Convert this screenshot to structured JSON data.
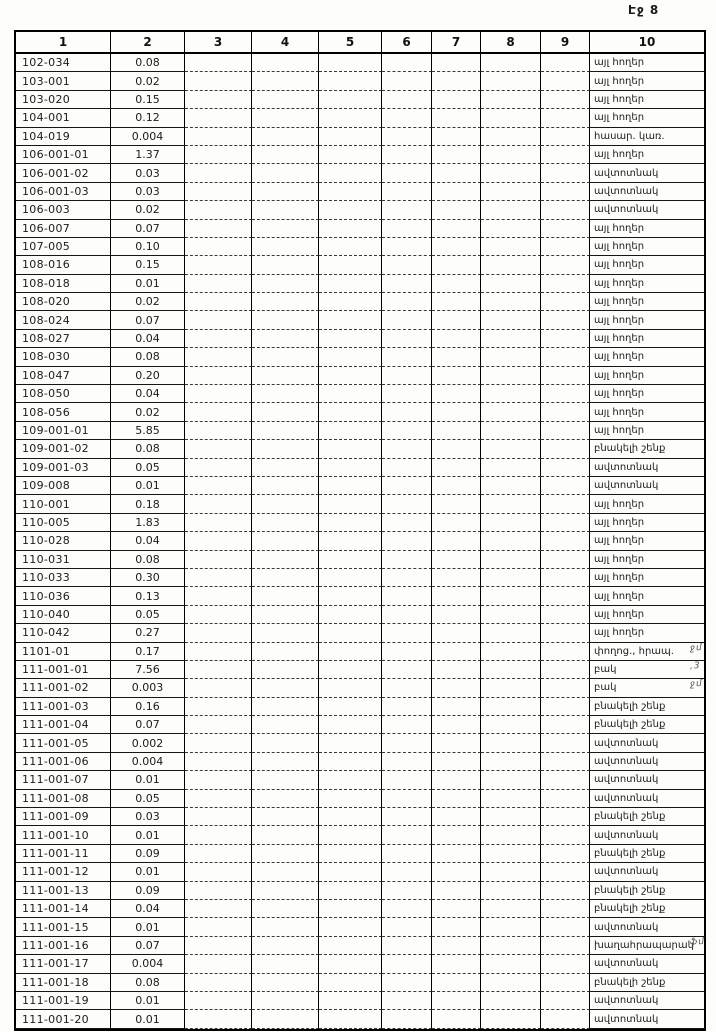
{
  "page": {
    "label": "Էջ 8"
  },
  "table": {
    "headers": [
      "1",
      "2",
      "3",
      "4",
      "5",
      "6",
      "7",
      "8",
      "9",
      "10"
    ],
    "rows": [
      {
        "id": "102-034",
        "value": "0.08",
        "category": "այլ հողեր"
      },
      {
        "id": "103-001",
        "value": "0.02",
        "category": "այլ հողեր"
      },
      {
        "id": "103-020",
        "value": "0.15",
        "category": "այլ հողեր"
      },
      {
        "id": "104-001",
        "value": "0.12",
        "category": "այլ հողեր"
      },
      {
        "id": "104-019",
        "value": "0.004",
        "category": "հասար. կառ."
      },
      {
        "id": "106-001-01",
        "value": "1.37",
        "category": "այլ հողեր"
      },
      {
        "id": "106-001-02",
        "value": "0.03",
        "category": "ավտոտնակ"
      },
      {
        "id": "106-001-03",
        "value": "0.03",
        "category": "ավտոտնակ"
      },
      {
        "id": "106-003",
        "value": "0.02",
        "category": "ավտոտնակ"
      },
      {
        "id": "106-007",
        "value": "0.07",
        "category": "այլ հողեր"
      },
      {
        "id": "107-005",
        "value": "0.10",
        "category": "այլ հողեր"
      },
      {
        "id": "108-016",
        "value": "0.15",
        "category": "այլ հողեր"
      },
      {
        "id": "108-018",
        "value": "0.01",
        "category": "այլ հողեր"
      },
      {
        "id": "108-020",
        "value": "0.02",
        "category": "այլ հողեր"
      },
      {
        "id": "108-024",
        "value": "0.07",
        "category": "այլ հողեր"
      },
      {
        "id": "108-027",
        "value": "0.04",
        "category": "այլ հողեր"
      },
      {
        "id": "108-030",
        "value": "0.08",
        "category": "այլ հողեր"
      },
      {
        "id": "108-047",
        "value": "0.20",
        "category": "այլ հողեր"
      },
      {
        "id": "108-050",
        "value": "0.04",
        "category": "այլ հողեր"
      },
      {
        "id": "108-056",
        "value": "0.02",
        "category": "այլ հողեր"
      },
      {
        "id": "109-001-01",
        "value": "5.85",
        "category": "այլ հողեր"
      },
      {
        "id": "109-001-02",
        "value": "0.08",
        "category": "բնակելի շենք"
      },
      {
        "id": "109-001-03",
        "value": "0.05",
        "category": "ավտոտնակ"
      },
      {
        "id": "109-008",
        "value": "0.01",
        "category": "ավտոտնակ"
      },
      {
        "id": "110-001",
        "value": "0.18",
        "category": "այլ հողեր"
      },
      {
        "id": "110-005",
        "value": "1.83",
        "category": "այլ հողեր"
      },
      {
        "id": "110-028",
        "value": "0.04",
        "category": "այլ հողեր"
      },
      {
        "id": "110-031",
        "value": "0.08",
        "category": "այլ հողեր"
      },
      {
        "id": "110-033",
        "value": "0.30",
        "category": "այլ հողեր"
      },
      {
        "id": "110-036",
        "value": "0.13",
        "category": "այլ հողեր"
      },
      {
        "id": "110-040",
        "value": "0.05",
        "category": "այլ հողեր"
      },
      {
        "id": "110-042",
        "value": "0.27",
        "category": "այլ հողեր"
      },
      {
        "id": "1101-01",
        "value": "0.17",
        "category": "փողոց., հրապ.",
        "note": "ջմ"
      },
      {
        "id": "111-001-01",
        "value": "7.56",
        "category": "բակ",
        "note": ",3"
      },
      {
        "id": "111-001-02",
        "value": "0.003",
        "category": "բակ",
        "note": "ջմ"
      },
      {
        "id": "111-001-03",
        "value": "0.16",
        "category": "բնակելի շենք"
      },
      {
        "id": "111-001-04",
        "value": "0.07",
        "category": "բնակելի շենք"
      },
      {
        "id": "111-001-05",
        "value": "0.002",
        "category": "ավտոտնակ"
      },
      {
        "id": "111-001-06",
        "value": "0.004",
        "category": "ավտոտնակ"
      },
      {
        "id": "111-001-07",
        "value": "0.01",
        "category": "ավտոտնակ"
      },
      {
        "id": "111-001-08",
        "value": "0.05",
        "category": "ավտոտնակ"
      },
      {
        "id": "111-001-09",
        "value": "0.03",
        "category": "բնակելի շենք"
      },
      {
        "id": "111-001-10",
        "value": "0.01",
        "category": "ավտոտնակ"
      },
      {
        "id": "111-001-11",
        "value": "0.09",
        "category": "բնակելի շենք"
      },
      {
        "id": "111-001-12",
        "value": "0.01",
        "category": "ավտոտնակ"
      },
      {
        "id": "111-001-13",
        "value": "0.09",
        "category": "բնակելի շենք"
      },
      {
        "id": "111-001-14",
        "value": "0.04",
        "category": "բնակելի շենք"
      },
      {
        "id": "111-001-15",
        "value": "0.01",
        "category": "ավտոտնակ"
      },
      {
        "id": "111-001-16",
        "value": "0.07",
        "category": "խաղահրապարակ",
        "note": "ֆմ"
      },
      {
        "id": "111-001-17",
        "value": "0.004",
        "category": "ավտոտնակ"
      },
      {
        "id": "111-001-18",
        "value": "0.08",
        "category": "բնակելի շենք"
      },
      {
        "id": "111-001-19",
        "value": "0.01",
        "category": "ավտոտնակ"
      },
      {
        "id": "111-001-20",
        "value": "0.01",
        "category": "ավտոտնակ"
      }
    ]
  }
}
